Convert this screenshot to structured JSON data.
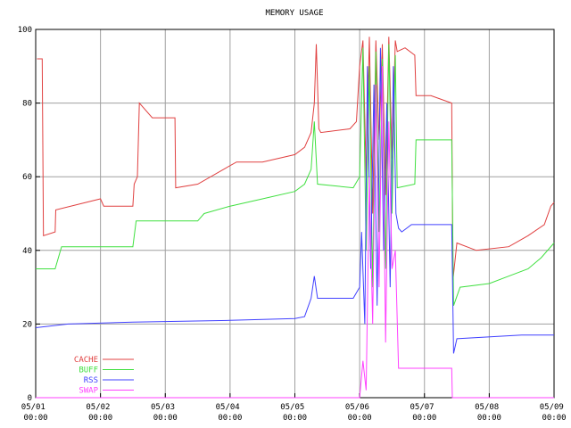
{
  "chart_data": {
    "type": "line",
    "title": "MEMORY USAGE",
    "xlim": [
      0,
      8
    ],
    "ylim": [
      0,
      100
    ],
    "yticks": [
      0,
      20,
      40,
      60,
      80,
      100
    ],
    "xticks": [
      {
        "value": 0,
        "label": "05/01 00:00"
      },
      {
        "value": 1,
        "label": "05/02 00:00"
      },
      {
        "value": 2,
        "label": "05/03 00:00"
      },
      {
        "value": 3,
        "label": "05/04 00:00"
      },
      {
        "value": 4,
        "label": "05/05 00:00"
      },
      {
        "value": 5,
        "label": "05/06 00:00"
      },
      {
        "value": 6,
        "label": "05/07 00:00"
      },
      {
        "value": 7,
        "label": "05/08 00:00"
      },
      {
        "value": 8,
        "label": "05/09 00:00"
      }
    ],
    "grid": true,
    "legend": "bottom-left",
    "series": [
      {
        "name": "CACHE",
        "color": "#e04040",
        "x": [
          0.02,
          0.1,
          0.12,
          0.3,
          0.31,
          1.0,
          1.05,
          1.5,
          1.52,
          1.57,
          1.6,
          1.8,
          2.15,
          2.16,
          2.5,
          2.9,
          3.1,
          3.5,
          4.0,
          4.15,
          4.25,
          4.3,
          4.33,
          4.37,
          4.4,
          4.85,
          4.95,
          5.0,
          5.05,
          5.1,
          5.15,
          5.2,
          5.25,
          5.3,
          5.35,
          5.4,
          5.45,
          5.5,
          5.55,
          5.58,
          5.7,
          5.85,
          5.87,
          6.1,
          6.42,
          6.44,
          6.5,
          6.8,
          7.3,
          7.6,
          7.85,
          7.95,
          8.0
        ],
        "values": [
          92,
          92,
          44,
          45,
          51,
          54,
          52,
          52,
          58,
          60,
          80,
          76,
          76,
          57,
          58,
          62,
          64,
          64,
          66,
          68,
          72,
          80,
          96,
          73,
          72,
          73,
          75,
          90,
          97,
          60,
          98,
          50,
          97,
          70,
          96,
          55,
          98,
          65,
          97,
          94,
          95,
          93,
          82,
          82,
          80,
          32,
          42,
          40,
          41,
          44,
          47,
          52,
          53
        ]
      },
      {
        "name": "BUFF",
        "color": "#40e040",
        "x": [
          0,
          0.3,
          0.4,
          1.5,
          1.55,
          2.5,
          2.6,
          3.0,
          3.5,
          4.0,
          4.15,
          4.25,
          4.3,
          4.35,
          4.9,
          5.0,
          5.05,
          5.1,
          5.15,
          5.2,
          5.25,
          5.3,
          5.35,
          5.4,
          5.45,
          5.5,
          5.55,
          5.58,
          5.85,
          5.87,
          6.42,
          6.45,
          6.55,
          7.0,
          7.3,
          7.6,
          7.8,
          8.0
        ],
        "values": [
          35,
          35,
          41,
          41,
          48,
          48,
          50,
          52,
          54,
          56,
          58,
          62,
          75,
          58,
          57,
          60,
          95,
          40,
          90,
          30,
          94,
          45,
          92,
          35,
          96,
          50,
          93,
          57,
          58,
          70,
          70,
          25,
          30,
          31,
          33,
          35,
          38,
          42
        ]
      },
      {
        "name": "RSS",
        "color": "#4040ff",
        "x": [
          0,
          0.5,
          1.5,
          3.0,
          4.0,
          4.15,
          4.25,
          4.3,
          4.35,
          4.9,
          5.0,
          5.03,
          5.08,
          5.12,
          5.17,
          5.22,
          5.27,
          5.32,
          5.37,
          5.42,
          5.47,
          5.52,
          5.56,
          5.6,
          5.65,
          5.8,
          6.42,
          6.45,
          6.5,
          7.5,
          8.0
        ],
        "values": [
          19,
          20,
          20.5,
          21,
          21.5,
          22,
          27,
          33,
          27,
          27,
          30,
          45,
          20,
          90,
          35,
          85,
          25,
          95,
          40,
          80,
          30,
          90,
          50,
          46,
          45,
          47,
          47,
          12,
          16,
          17,
          17
        ]
      },
      {
        "name": "SWAP",
        "color": "#ff40ff",
        "x": [
          0,
          5.0,
          5.05,
          5.1,
          5.15,
          5.2,
          5.25,
          5.3,
          5.35,
          5.4,
          5.45,
          5.5,
          5.55,
          5.6,
          6.42,
          6.43,
          8.0
        ],
        "values": [
          0,
          0,
          10,
          2,
          60,
          20,
          85,
          30,
          90,
          15,
          75,
          35,
          40,
          8,
          8,
          0,
          0
        ]
      }
    ]
  }
}
